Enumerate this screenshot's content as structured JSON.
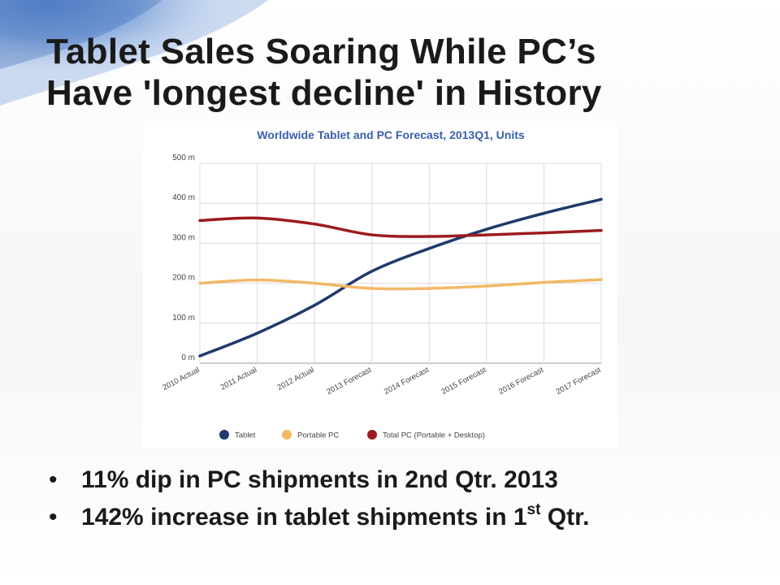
{
  "slide": {
    "title_line1": "Tablet Sales Soaring While PC’s",
    "title_line2": "Have 'longest decline' in History",
    "bullets": [
      {
        "text": "11% dip in PC shipments in 2nd Qtr. 2013",
        "sup": "",
        "tail": ""
      },
      {
        "text": "142% increase in tablet shipments in 1",
        "sup": "st",
        "tail": " Qtr."
      }
    ]
  },
  "chart_data": {
    "type": "line",
    "title": "Worldwide Tablet and PC Forecast, 2013Q1, Units",
    "xlabel": "",
    "ylabel": "",
    "categories": [
      "2010 Actual",
      "2011 Actual",
      "2012 Actual",
      "2013 Forecast",
      "2014 Forecast",
      "2015 Forecast",
      "2016 Forecast",
      "2017 Forecast"
    ],
    "y_ticks": [
      "0 m",
      "100 m",
      "200 m",
      "300 m",
      "400 m",
      "500 m"
    ],
    "ylim": [
      0,
      500
    ],
    "grid": true,
    "legend_position": "bottom",
    "series": [
      {
        "name": "Tablet",
        "color": "#1f3a6b",
        "values": [
          18,
          75,
          145,
          230,
          287,
          335,
          375,
          410
        ]
      },
      {
        "name": "Portable PC",
        "color": "#f2b866",
        "values": [
          200,
          208,
          200,
          187,
          187,
          193,
          202,
          209
        ]
      },
      {
        "name": "Total PC (Portable + Desktop)",
        "color": "#9b1b1e",
        "values": [
          357,
          363,
          348,
          321,
          317,
          321,
          326,
          332
        ]
      }
    ]
  },
  "colors": {
    "title_text": "#1a1a1a",
    "chart_title": "#3a5fa8",
    "axis_text": "#444444",
    "gridline": "#dcdcdc"
  }
}
